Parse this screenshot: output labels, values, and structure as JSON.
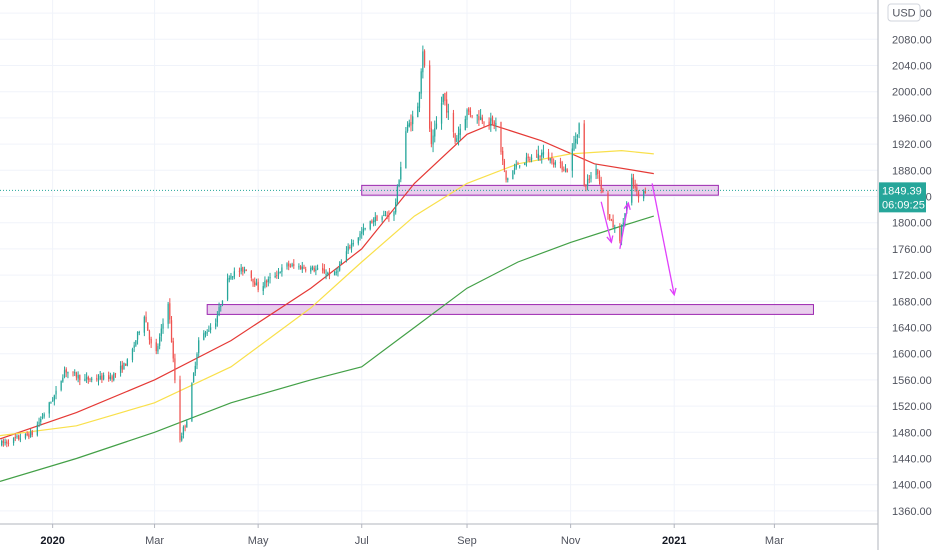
{
  "chart_data": {
    "type": "candlestick",
    "currency": "USD",
    "y_axis": {
      "min": 1340,
      "max": 2140,
      "ticks": [
        2120,
        2080,
        2040,
        2000,
        1960,
        1920,
        1880,
        1840,
        1800,
        1760,
        1720,
        1680,
        1640,
        1600,
        1560,
        1520,
        1480,
        1440,
        1400,
        1360
      ],
      "tick_labels": [
        "2120.00",
        "2080.00",
        "2040.00",
        "2000.00",
        "1960.00",
        "1920.00",
        "1880.00",
        "1840.00",
        "1800.00",
        "1760.00",
        "1720.00",
        "1680.00",
        "1640.00",
        "1600.00",
        "1560.00",
        "1520.00",
        "1480.00",
        "1440.00",
        "1400.00",
        "1360.00"
      ]
    },
    "x_axis": {
      "range": [
        "2019-12-01",
        "2021-05-01"
      ],
      "labels": [
        {
          "date": "2020-01-01",
          "text": "2020",
          "bold": true
        },
        {
          "date": "2020-03-01",
          "text": "Mar",
          "bold": false
        },
        {
          "date": "2020-05-01",
          "text": "May",
          "bold": false
        },
        {
          "date": "2020-07-01",
          "text": "Jul",
          "bold": false
        },
        {
          "date": "2020-09-01",
          "text": "Sep",
          "bold": false
        },
        {
          "date": "2020-11-01",
          "text": "Nov",
          "bold": false
        },
        {
          "date": "2021-01-01",
          "text": "2021",
          "bold": true
        },
        {
          "date": "2021-03-01",
          "text": "Mar",
          "bold": false
        }
      ]
    },
    "price_keypoints": [
      [
        "2019-12-01",
        1462
      ],
      [
        "2019-12-20",
        1478
      ],
      [
        "2020-01-03",
        1540
      ],
      [
        "2020-01-08",
        1575
      ],
      [
        "2020-01-20",
        1560
      ],
      [
        "2020-02-05",
        1565
      ],
      [
        "2020-02-15",
        1590
      ],
      [
        "2020-02-24",
        1660
      ],
      [
        "2020-03-01",
        1590
      ],
      [
        "2020-03-09",
        1680
      ],
      [
        "2020-03-16",
        1470
      ],
      [
        "2020-03-20",
        1500
      ],
      [
        "2020-03-27",
        1620
      ],
      [
        "2020-04-06",
        1650
      ],
      [
        "2020-04-14",
        1720
      ],
      [
        "2020-04-24",
        1730
      ],
      [
        "2020-05-01",
        1700
      ],
      [
        "2020-05-18",
        1735
      ],
      [
        "2020-06-01",
        1730
      ],
      [
        "2020-06-15",
        1720
      ],
      [
        "2020-06-24",
        1765
      ],
      [
        "2020-07-08",
        1805
      ],
      [
        "2020-07-20",
        1815
      ],
      [
        "2020-07-27",
        1940
      ],
      [
        "2020-08-03",
        1975
      ],
      [
        "2020-08-06",
        2065
      ],
      [
        "2020-08-11",
        1915
      ],
      [
        "2020-08-18",
        1995
      ],
      [
        "2020-08-25",
        1925
      ],
      [
        "2020-09-01",
        1970
      ],
      [
        "2020-09-18",
        1950
      ],
      [
        "2020-09-24",
        1865
      ],
      [
        "2020-10-01",
        1890
      ],
      [
        "2020-10-15",
        1905
      ],
      [
        "2020-10-30",
        1880
      ],
      [
        "2020-11-06",
        1950
      ],
      [
        "2020-11-09",
        1855
      ],
      [
        "2020-11-16",
        1885
      ],
      [
        "2020-11-24",
        1805
      ],
      [
        "2020-11-30",
        1776
      ],
      [
        "2020-12-07",
        1865
      ],
      [
        "2020-12-11",
        1838
      ],
      [
        "2020-12-15",
        1849
      ]
    ],
    "current_price": "1849.39",
    "countdown": "06:09:25",
    "moving_averages": [
      {
        "color": "#e53935",
        "points": [
          [
            "2019-12-01",
            1470
          ],
          [
            "2020-01-15",
            1510
          ],
          [
            "2020-03-01",
            1560
          ],
          [
            "2020-04-15",
            1620
          ],
          [
            "2020-06-01",
            1700
          ],
          [
            "2020-07-01",
            1760
          ],
          [
            "2020-08-01",
            1860
          ],
          [
            "2020-09-01",
            1935
          ],
          [
            "2020-09-15",
            1950
          ],
          [
            "2020-10-15",
            1925
          ],
          [
            "2020-11-15",
            1890
          ],
          [
            "2020-12-20",
            1875
          ]
        ]
      },
      {
        "color": "#f9e04b",
        "points": [
          [
            "2019-12-01",
            1475
          ],
          [
            "2020-01-15",
            1490
          ],
          [
            "2020-03-01",
            1525
          ],
          [
            "2020-04-15",
            1580
          ],
          [
            "2020-06-01",
            1670
          ],
          [
            "2020-07-01",
            1740
          ],
          [
            "2020-08-01",
            1810
          ],
          [
            "2020-09-01",
            1860
          ],
          [
            "2020-10-01",
            1890
          ],
          [
            "2020-11-01",
            1905
          ],
          [
            "2020-12-01",
            1910
          ],
          [
            "2020-12-20",
            1905
          ]
        ]
      },
      {
        "color": "#43a047",
        "points": [
          [
            "2019-12-01",
            1405
          ],
          [
            "2020-01-15",
            1440
          ],
          [
            "2020-03-01",
            1480
          ],
          [
            "2020-04-15",
            1525
          ],
          [
            "2020-06-01",
            1560
          ],
          [
            "2020-07-01",
            1580
          ],
          [
            "2020-08-01",
            1640
          ],
          [
            "2020-09-01",
            1700
          ],
          [
            "2020-10-01",
            1740
          ],
          [
            "2020-11-01",
            1770
          ],
          [
            "2020-12-01",
            1795
          ],
          [
            "2020-12-20",
            1810
          ]
        ]
      }
    ],
    "annotations": {
      "zones": [
        {
          "from_date": "2020-07-01",
          "to_date": "2021-01-27",
          "low": 1842,
          "high": 1857
        },
        {
          "from_date": "2020-04-01",
          "to_date": "2021-03-24",
          "low": 1660,
          "high": 1675
        }
      ],
      "arrows": [
        {
          "from": [
            "2020-11-19",
            1832
          ],
          "to": [
            "2020-11-25",
            1770
          ]
        },
        {
          "from": [
            "2020-11-30",
            1760
          ],
          "to": [
            "2020-12-05",
            1830
          ]
        },
        {
          "from": [
            "2020-12-19",
            1860
          ],
          "to": [
            "2021-01-01",
            1690
          ]
        }
      ]
    },
    "colors": {
      "up": "#26a69a",
      "down": "#ef5350",
      "grid": "#f0f3fa",
      "zone_fill": "#e1bee7",
      "zone_stroke": "#9c27b0",
      "arrow": "#e040fb",
      "price_badge": "#26a69a",
      "price_line": "#26a69a"
    }
  }
}
